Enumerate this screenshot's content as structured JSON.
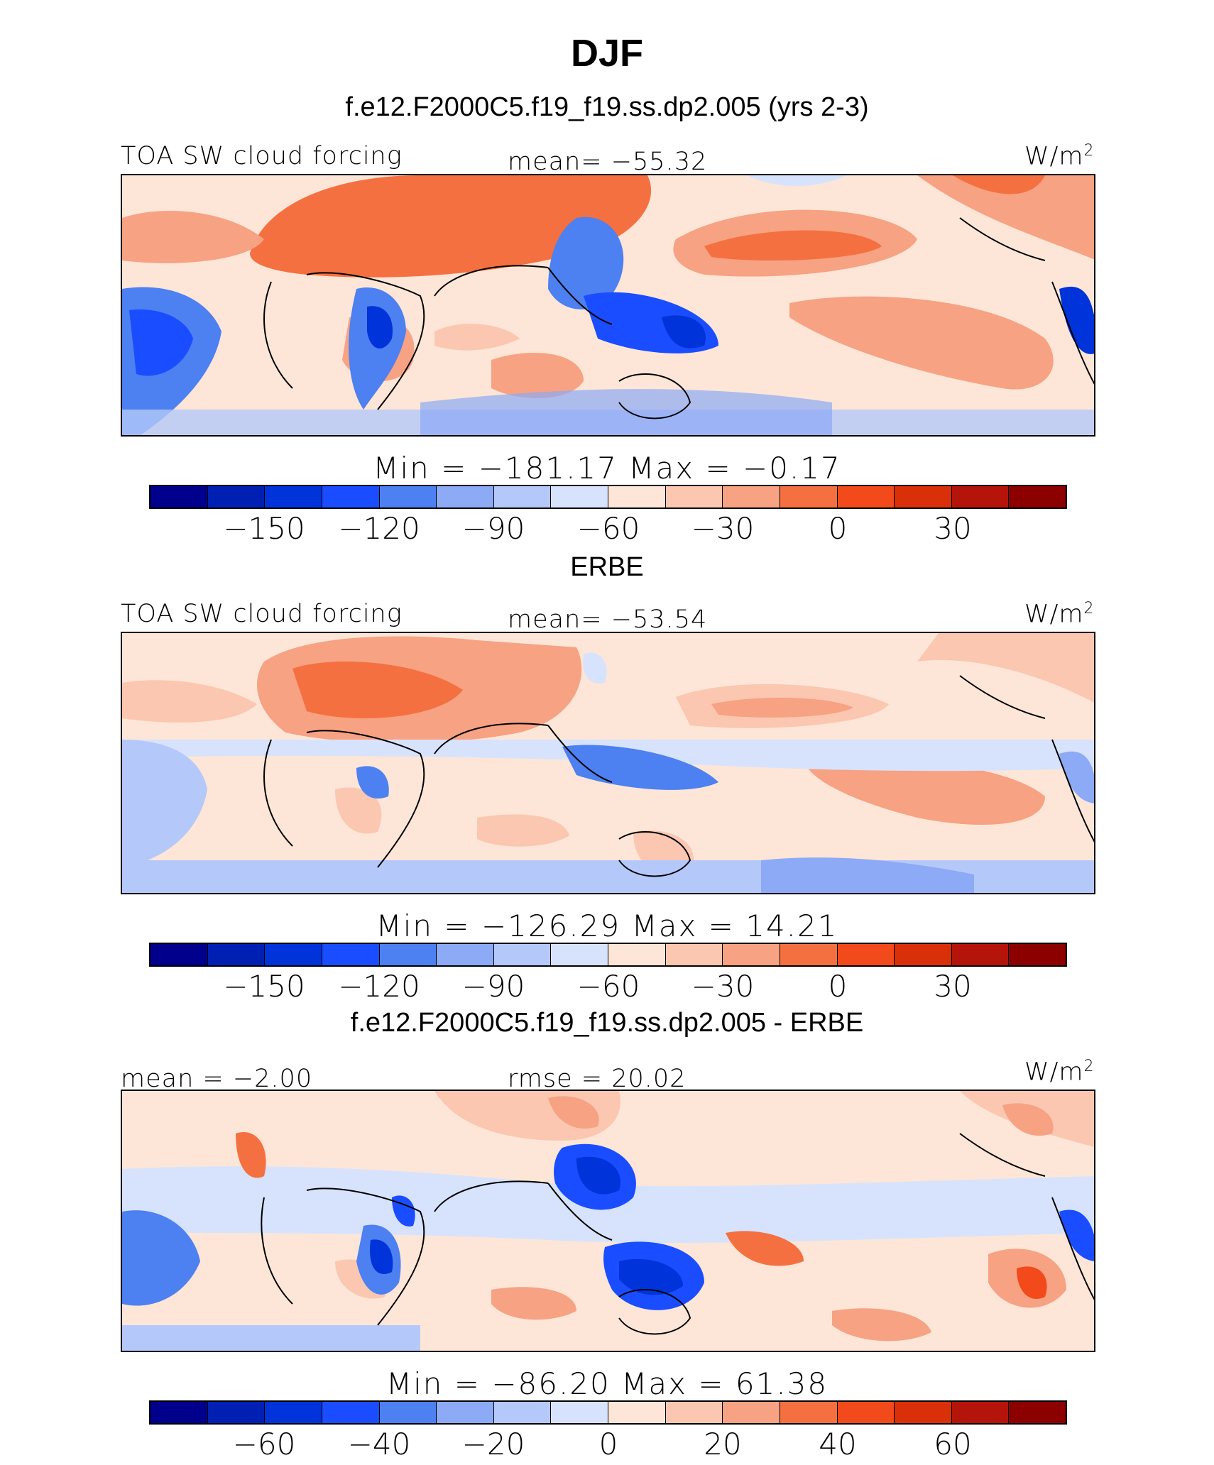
{
  "page": {
    "title": "DJF",
    "subtitle_top": "f.e12.F2000C5.f19_f19.ss.dp2.005 (yrs 2-3)",
    "subtitle_mid": "ERBE",
    "subtitle_bottom": "f.e12.F2000C5.f19_f19.ss.dp2.005 - ERBE"
  },
  "palette": [
    "#00008c",
    "#0020b4",
    "#0033d9",
    "#1a4dff",
    "#4d80f0",
    "#8caaf5",
    "#b4c8fa",
    "#d7e3fc",
    "#fde6d7",
    "#fbc7b1",
    "#f7a283",
    "#f57040",
    "#f24a1a",
    "#d9300a",
    "#b4140a",
    "#8c0000"
  ],
  "panels": [
    {
      "id": "model",
      "left_label": "TOA SW cloud forcing",
      "center_label": "mean=  −55.32",
      "units": "W/m",
      "units_sup": "2",
      "min_label": "Min",
      "min_value": "−181.17",
      "max_label": "Max",
      "max_value": "−0.17",
      "eq": "=",
      "ticks": [
        "−150",
        "−120",
        "−90",
        "−60",
        "−30",
        "0",
        "30"
      ]
    },
    {
      "id": "obs",
      "left_label": "TOA SW cloud forcing",
      "center_label": "mean=  −53.54",
      "units": "W/m",
      "units_sup": "2",
      "min_label": "Min",
      "min_value": "−126.29",
      "max_label": "Max",
      "max_value": "14.21",
      "eq": "=",
      "ticks": [
        "−150",
        "−120",
        "−90",
        "−60",
        "−30",
        "0",
        "30"
      ]
    },
    {
      "id": "diff",
      "left_label": "mean =   −2.00",
      "center_label": "rmse =   20.02",
      "units": "W/m",
      "units_sup": "2",
      "min_label": "Min",
      "min_value": "−86.20",
      "max_label": "Max",
      "max_value": "61.38",
      "eq": "=",
      "ticks": [
        "−60",
        "−40",
        "−20",
        "0",
        "20",
        "40",
        "60"
      ]
    }
  ]
}
